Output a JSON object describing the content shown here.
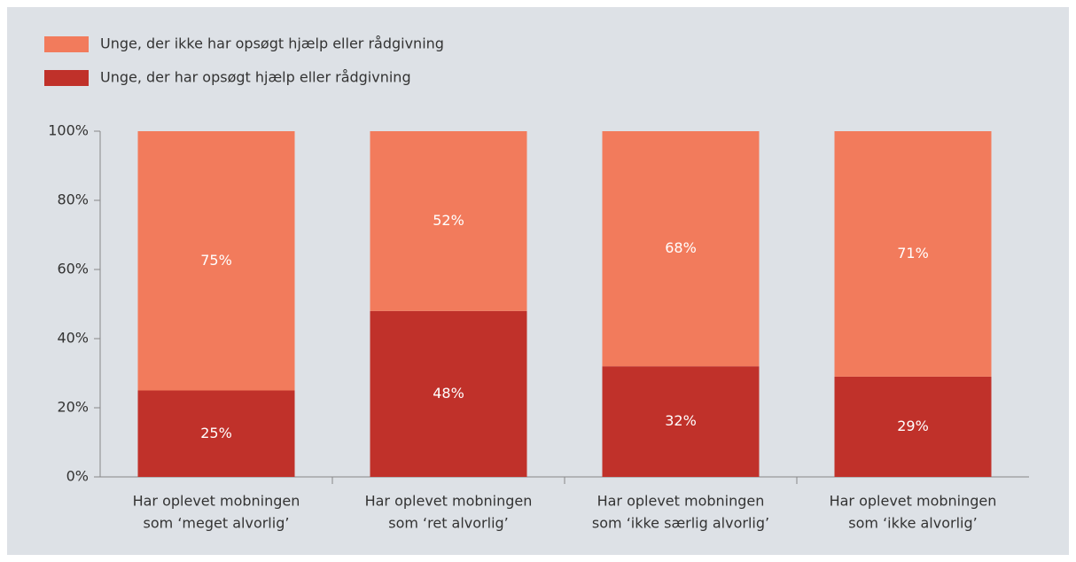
{
  "chart_data": {
    "type": "stacked_bar",
    "categories": [
      [
        "Har oplevet mobningen",
        "som ‘meget alvorlig’"
      ],
      [
        "Har oplevet mobningen",
        "som ‘ret alvorlig’"
      ],
      [
        "Har oplevet mobningen",
        "som ‘ikke særlig alvorlig’"
      ],
      [
        "Har oplevet mobningen",
        "som ‘ikke alvorlig’"
      ]
    ],
    "series": [
      {
        "name": "Unge, der ikke har opsøgt hjælp eller rådgivning",
        "color": "#f27b5c",
        "values": [
          75,
          52,
          68,
          71
        ],
        "value_labels": [
          "75%",
          "52%",
          "68%",
          "71%"
        ]
      },
      {
        "name": "Unge, der har opsøgt hjælp eller rådgivning",
        "color": "#c0312a",
        "values": [
          25,
          48,
          32,
          29
        ],
        "value_labels": [
          "25%",
          "48%",
          "32%",
          "29%"
        ]
      }
    ],
    "ylim": [
      0,
      100
    ],
    "yticks": [
      {
        "value": 0,
        "label": "0%"
      },
      {
        "value": 20,
        "label": "20%"
      },
      {
        "value": 40,
        "label": "40%"
      },
      {
        "value": 60,
        "label": "60%"
      },
      {
        "value": 80,
        "label": "80%"
      },
      {
        "value": 100,
        "label": "100%"
      }
    ]
  }
}
